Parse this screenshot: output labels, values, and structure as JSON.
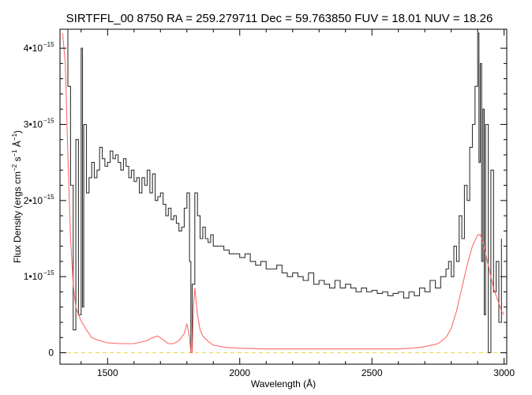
{
  "chart_data": {
    "type": "line",
    "title": "SIRTFFL_00 8750 RA = 259.279711 Dec =  59.763850 FUV = 18.01 NUV = 18.26",
    "xlabel": "Wavelength (Å)",
    "ylabel_parts": [
      "Flux Density (ergs cm",
      "−2",
      " s",
      "−1",
      " Å",
      "−1",
      ")"
    ],
    "xlim": [
      1320,
      3010
    ],
    "ylim": [
      -0.15,
      4.25
    ],
    "y_scale": 1e-15,
    "x_ticks": [
      {
        "value": 1500,
        "label": "1500"
      },
      {
        "value": 2000,
        "label": "2000"
      },
      {
        "value": 2500,
        "label": "2500"
      },
      {
        "value": 3000,
        "label": "3000"
      }
    ],
    "y_ticks": [
      {
        "value": 0,
        "mantissa": "0",
        "exp": ""
      },
      {
        "value": 1,
        "mantissa": "1•10",
        "exp": "−15"
      },
      {
        "value": 2,
        "mantissa": "2•10",
        "exp": "−15"
      },
      {
        "value": 3,
        "mantissa": "3•10",
        "exp": "−15"
      },
      {
        "value": 4,
        "mantissa": "4•10",
        "exp": "−15"
      }
    ],
    "zero_line": {
      "y": 0,
      "color": "#e8d84a",
      "style": "dashed"
    },
    "series": [
      {
        "color": "#333333",
        "step": true,
        "x": [
          1340,
          1350,
          1360,
          1370,
          1380,
          1390,
          1400,
          1405,
          1410,
          1420,
          1430,
          1440,
          1450,
          1460,
          1470,
          1480,
          1490,
          1500,
          1510,
          1520,
          1530,
          1540,
          1550,
          1560,
          1570,
          1580,
          1590,
          1600,
          1610,
          1620,
          1630,
          1640,
          1650,
          1660,
          1670,
          1680,
          1690,
          1700,
          1710,
          1720,
          1730,
          1740,
          1750,
          1760,
          1770,
          1780,
          1790,
          1800,
          1810,
          1815,
          1820,
          1830,
          1840,
          1850,
          1860,
          1870,
          1880,
          1890,
          1900,
          1920,
          1940,
          1960,
          1980,
          2000,
          2020,
          2040,
          2060,
          2080,
          2100,
          2120,
          2140,
          2160,
          2180,
          2200,
          2220,
          2240,
          2260,
          2280,
          2300,
          2320,
          2340,
          2360,
          2380,
          2400,
          2420,
          2440,
          2460,
          2480,
          2500,
          2520,
          2540,
          2560,
          2580,
          2600,
          2620,
          2640,
          2660,
          2680,
          2700,
          2720,
          2740,
          2760,
          2780,
          2790,
          2800,
          2810,
          2820,
          2830,
          2840,
          2850,
          2860,
          2870,
          2880,
          2890,
          2900,
          2905,
          2910,
          2915,
          2920,
          2925,
          2930,
          2940,
          2950,
          2960,
          2970,
          2980,
          2990
        ],
        "y": [
          4.3,
          3.5,
          2.2,
          0.3,
          2.8,
          0.5,
          4.0,
          0.6,
          3.0,
          2.1,
          2.3,
          2.5,
          2.3,
          2.4,
          2.7,
          2.55,
          2.45,
          2.5,
          2.65,
          2.55,
          2.6,
          2.5,
          2.4,
          2.55,
          2.45,
          2.3,
          2.4,
          2.25,
          2.3,
          2.1,
          2.3,
          2.2,
          2.4,
          2.1,
          2.35,
          2.0,
          2.05,
          2.1,
          1.95,
          1.8,
          1.9,
          1.75,
          1.8,
          1.7,
          1.6,
          1.65,
          1.9,
          2.1,
          1.2,
          0.0,
          0.9,
          2.1,
          1.8,
          1.5,
          1.65,
          1.5,
          1.45,
          1.55,
          1.4,
          1.4,
          1.35,
          1.3,
          1.3,
          1.25,
          1.3,
          1.2,
          1.15,
          1.2,
          1.1,
          1.1,
          1.15,
          1.05,
          1.0,
          1.05,
          1.0,
          0.95,
          1.05,
          0.9,
          0.95,
          0.9,
          0.85,
          0.95,
          0.85,
          0.9,
          0.85,
          0.8,
          0.85,
          0.8,
          0.82,
          0.78,
          0.8,
          0.75,
          0.78,
          0.8,
          0.72,
          0.8,
          0.75,
          0.85,
          0.8,
          0.95,
          0.85,
          1.0,
          1.1,
          1.2,
          1.0,
          1.4,
          1.2,
          1.8,
          1.5,
          2.2,
          2.0,
          2.7,
          3.0,
          3.5,
          4.2,
          2.5,
          3.8,
          1.2,
          3.2,
          0.5,
          3.0,
          0.0,
          2.4,
          0.8,
          1.2,
          0.4,
          1.5
        ]
      },
      {
        "color": "#ff6a6a",
        "step": false,
        "x": [
          1330,
          1340,
          1350,
          1360,
          1370,
          1380,
          1390,
          1400,
          1420,
          1440,
          1460,
          1480,
          1500,
          1550,
          1600,
          1650,
          1670,
          1690,
          1710,
          1730,
          1750,
          1770,
          1790,
          1800,
          1810,
          1815,
          1820,
          1825,
          1830,
          1840,
          1850,
          1860,
          1880,
          1900,
          1950,
          2000,
          2100,
          2200,
          2300,
          2400,
          2500,
          2600,
          2650,
          2700,
          2750,
          2780,
          2800,
          2820,
          2840,
          2860,
          2880,
          2900,
          2910,
          2920,
          2930,
          2940,
          2950,
          2960,
          2970,
          2980,
          2990,
          3000
        ],
        "y": [
          4.2,
          3.8,
          2.6,
          1.5,
          0.9,
          0.6,
          0.5,
          0.42,
          0.3,
          0.2,
          0.17,
          0.15,
          0.13,
          0.12,
          0.12,
          0.16,
          0.2,
          0.22,
          0.17,
          0.12,
          0.12,
          0.16,
          0.25,
          0.38,
          0.2,
          0.0,
          0.0,
          0.6,
          0.85,
          0.5,
          0.3,
          0.22,
          0.15,
          0.1,
          0.07,
          0.06,
          0.05,
          0.05,
          0.05,
          0.05,
          0.05,
          0.05,
          0.06,
          0.08,
          0.12,
          0.2,
          0.32,
          0.55,
          0.85,
          1.15,
          1.4,
          1.55,
          1.55,
          1.45,
          1.3,
          1.15,
          1.0,
          0.85,
          0.75,
          0.65,
          0.55,
          0.5
        ]
      }
    ],
    "grid": false
  }
}
